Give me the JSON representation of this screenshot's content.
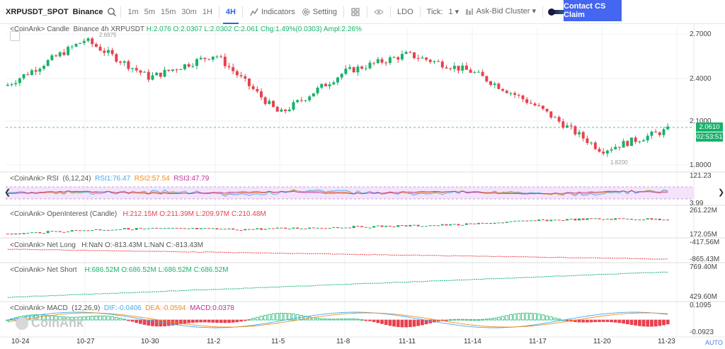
{
  "toolbar": {
    "symbol": "XRPUSDT_SPOT",
    "exchange": "Binance",
    "timeframes": [
      "1m",
      "5m",
      "15m",
      "30m",
      "1H",
      "4H"
    ],
    "active_timeframe": "4H",
    "indicators_label": "Indicators",
    "setting_label": "Setting",
    "ldo_label": "LDO",
    "tick_label": "Tick:",
    "tick_value": "1",
    "ask_bid_label": "Ask-Bid Cluster",
    "cs_button_label": "Contact CS Claim"
  },
  "main_panel": {
    "legend_prefix": "<CoinAnk> Candle",
    "legend_symbol": "Binance 4h XRPUSDT",
    "h": "H:2.076",
    "o": "O:2.0307",
    "l": "L:2.0302",
    "c": "C:2.061",
    "chg": "Chg:1.49%(0.0303)",
    "ampl": "Ampl:2.26%",
    "max_label": "2.6975",
    "min_label": "1.8200",
    "price_axis": [
      "2.7000",
      "2.4000",
      "2.1000",
      "1.8000"
    ],
    "last_price": "2.0610",
    "countdown": "02:53:51"
  },
  "rsi_panel": {
    "prefix": "<CoinAnk> RSI",
    "params": "(6,12,24)",
    "rsi1": "RSI1:76.47",
    "rsi2": "RSI2:57.54",
    "rsi3": "RSI3:47.79",
    "axis_top": "121.23",
    "axis_bottom": "3.99"
  },
  "oi_panel": {
    "prefix": "<CoinAnk> OpenInterest (Candle)",
    "h": "H:212.15M",
    "o": "O:211.39M",
    "l": "L:209.97M",
    "c": "C:210.48M",
    "axis_top": "261.22M",
    "axis_bottom": "172.05M"
  },
  "netlong_panel": {
    "prefix": "<CoinAnk> Net Long",
    "values": "H:NaN  O:-813.43M  L:NaN  C:-813.43M",
    "axis_top": "-417.56M",
    "axis_bottom": "-865.43M"
  },
  "netshort_panel": {
    "prefix": "<CoinAnk> Net Short",
    "h": "H:686.52M",
    "o": "O:686.52M",
    "l": "L:686.52M",
    "c": "C:686.52M",
    "axis_top": "769.40M",
    "axis_bottom": "429.60M"
  },
  "macd_panel": {
    "prefix": "<CoinAnk> MACD",
    "params": "(12,26,9)",
    "dif": "DIF:-0.0406",
    "dea": "DEA:-0.0594",
    "macd": "MACD:0.0378",
    "axis_top": "0.1095",
    "axis_bottom": "-0.0923"
  },
  "x_axis": [
    "10-24",
    "10-27",
    "10-30",
    "11-2",
    "11-5",
    "11-8",
    "11-11",
    "11-14",
    "11-17",
    "11-20",
    "11-23"
  ],
  "watermark": "CoinAnk",
  "auto_label": "AUTO",
  "colors": {
    "up": "#17b26a",
    "down": "#e8414e",
    "accent": "#2c62e8",
    "cs_button": "#4466f0"
  },
  "chart_data": {
    "type": "line",
    "title": "Binance 4h XRPUSDT",
    "xlabel": "",
    "ylabel": "",
    "categories": [
      "10-24",
      "10-27",
      "10-30",
      "11-2",
      "11-5",
      "11-8",
      "11-11",
      "11-14",
      "11-17",
      "11-20",
      "11-23"
    ],
    "series": [
      {
        "name": "",
        "values": [
          2.4,
          2.66,
          2.4,
          2.56,
          2.15,
          2.44,
          2.56,
          2.44,
          2.2,
          1.9,
          2.06
        ]
      }
    ],
    "ylim": [
      1.75,
      2.75
    ],
    "annotations": [
      "2.6975",
      "1.8200"
    ]
  }
}
